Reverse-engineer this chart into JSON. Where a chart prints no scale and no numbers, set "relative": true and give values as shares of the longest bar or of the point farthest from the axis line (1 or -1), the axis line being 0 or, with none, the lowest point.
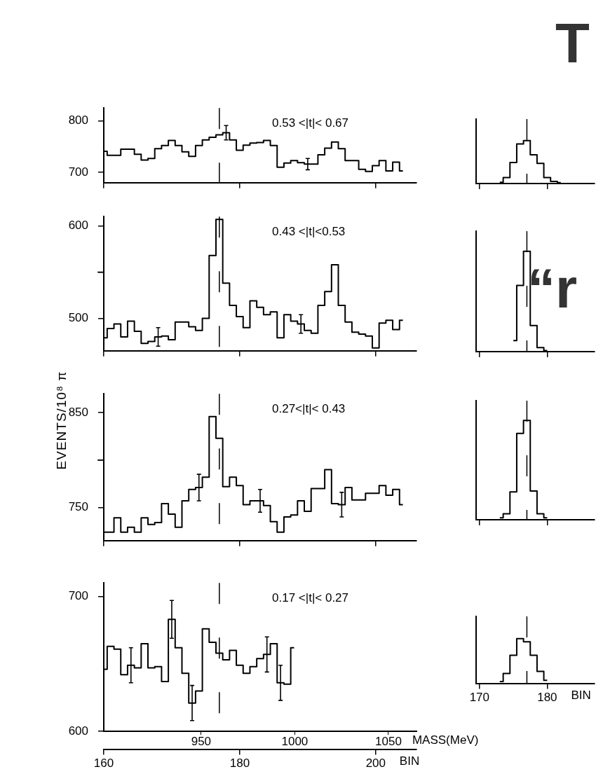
{
  "chart_data": [
    {
      "type": "step",
      "title": "0.53 <|t|< 0.67",
      "color": "#000000",
      "tick_labels": "y",
      "xlim": [
        160,
        206
      ],
      "xticks": [
        160,
        180,
        200
      ],
      "ylim": [
        680,
        825
      ],
      "yticks": [
        700,
        800
      ],
      "x": [
        160,
        161,
        162,
        163,
        164,
        165,
        166,
        167,
        168,
        169,
        170,
        171,
        172,
        173,
        174,
        175,
        176,
        177,
        178,
        179,
        180,
        181,
        182,
        183,
        184,
        185,
        186,
        187,
        188,
        189,
        190,
        191,
        192,
        193,
        194,
        195,
        196,
        197,
        198,
        199,
        200,
        201,
        202,
        203,
        204
      ],
      "values": [
        741,
        733,
        733,
        745,
        745,
        735,
        724,
        727,
        746,
        752,
        762,
        752,
        740,
        731,
        752,
        763,
        768,
        773,
        777,
        763,
        743,
        753,
        757,
        758,
        762,
        752,
        710,
        718,
        723,
        719,
        716,
        716,
        734,
        747,
        759,
        746,
        723,
        723,
        706,
        702,
        713,
        723,
        703,
        720,
        703
      ],
      "errors": [
        null,
        null,
        null,
        null,
        null,
        null,
        null,
        null,
        null,
        null,
        null,
        null,
        null,
        null,
        null,
        null,
        null,
        null,
        14,
        null,
        null,
        null,
        null,
        null,
        null,
        null,
        null,
        null,
        null,
        null,
        11,
        null,
        null,
        null,
        null,
        null,
        null,
        null,
        null,
        null,
        null,
        null,
        null,
        null,
        null
      ],
      "ref_lines": [
        {
          "axis": "x",
          "value": 177,
          "line_style": "dashed"
        }
      ]
    },
    {
      "type": "step",
      "relative": true,
      "color": "#000000",
      "tick_labels": false,
      "xlim": [
        169.5,
        187
      ],
      "xticks": [
        170,
        180
      ],
      "x": [
        173,
        174,
        175,
        176,
        177,
        178,
        179,
        180,
        181,
        182
      ],
      "values": [
        0.03,
        0.14,
        0.49,
        0.92,
        1,
        0.67,
        0.47,
        0.14,
        0.05,
        0.02
      ],
      "ref_lines": [
        {
          "axis": "x",
          "value": 177,
          "line_style": "dashed"
        }
      ]
    },
    {
      "type": "step",
      "title": "0.43 <|t|<0.53",
      "color": "#000000",
      "tick_labels": "y",
      "xlim": [
        160,
        206
      ],
      "xticks": [
        160,
        180,
        200
      ],
      "ylim": [
        465,
        610
      ],
      "yticks": [
        500,
        {
          "value": 550,
          "label": null
        },
        600
      ],
      "x": [
        160,
        161,
        162,
        163,
        164,
        165,
        166,
        167,
        168,
        169,
        170,
        171,
        172,
        173,
        174,
        175,
        176,
        177,
        178,
        179,
        180,
        181,
        182,
        183,
        184,
        185,
        186,
        187,
        188,
        189,
        190,
        191,
        192,
        193,
        194,
        195,
        196,
        197,
        198,
        199,
        200,
        201,
        202,
        203,
        204
      ],
      "values": [
        479,
        489,
        494,
        480,
        497,
        486,
        473,
        475,
        480,
        481,
        477,
        496,
        496,
        491,
        487,
        500,
        568,
        607,
        538,
        514,
        502,
        490,
        519,
        512,
        504,
        507,
        479,
        504,
        497,
        494,
        487,
        484,
        514,
        529,
        558,
        514,
        496,
        485,
        483,
        481,
        468,
        495,
        498,
        488,
        498
      ],
      "errors": [
        null,
        null,
        null,
        null,
        null,
        null,
        null,
        null,
        10,
        null,
        null,
        null,
        null,
        null,
        null,
        null,
        null,
        null,
        null,
        null,
        null,
        null,
        null,
        null,
        null,
        null,
        null,
        null,
        null,
        10,
        null,
        null,
        null,
        null,
        null,
        null,
        null,
        null,
        null,
        null,
        null,
        null,
        null,
        null,
        null
      ],
      "ref_lines": [
        {
          "axis": "x",
          "value": 177,
          "line_style": "dashed"
        }
      ]
    },
    {
      "type": "step",
      "relative": true,
      "color": "#000000",
      "tick_labels": false,
      "xlim": [
        169.5,
        187
      ],
      "xticks": [
        170,
        180
      ],
      "x": [
        175,
        176,
        177,
        178,
        179,
        180
      ],
      "values": [
        0.11,
        0.66,
        1,
        0.26,
        0.04,
        0.01
      ],
      "ref_lines": [
        {
          "axis": "x",
          "value": 177,
          "line_style": "dashed"
        }
      ]
    },
    {
      "type": "step",
      "title": "0.27<|t|< 0.43",
      "ylabel": "EVENTS/10⁸ π",
      "color": "#000000",
      "tick_labels": "y",
      "xlim": [
        160,
        206
      ],
      "xticks": [
        160,
        180,
        200
      ],
      "ylim": [
        715,
        870
      ],
      "yticks": [
        750,
        {
          "value": 800,
          "label": null
        },
        850
      ],
      "x": [
        160,
        161,
        162,
        163,
        164,
        165,
        166,
        167,
        168,
        169,
        170,
        171,
        172,
        173,
        174,
        175,
        176,
        177,
        178,
        179,
        180,
        181,
        182,
        183,
        184,
        185,
        186,
        187,
        188,
        189,
        190,
        191,
        192,
        193,
        194,
        195,
        196,
        197,
        198,
        199,
        200,
        201,
        202,
        203,
        204
      ],
      "values": [
        724,
        724,
        739,
        724,
        729,
        724,
        739,
        732,
        734,
        754,
        743,
        729,
        757,
        769,
        771,
        782,
        846,
        823,
        772,
        782,
        773,
        753,
        757,
        757,
        752,
        735,
        724,
        740,
        742,
        757,
        746,
        770,
        770,
        790,
        754,
        753,
        771,
        758,
        758,
        765,
        765,
        773,
        763,
        769,
        753
      ],
      "errors": [
        null,
        null,
        null,
        null,
        null,
        null,
        null,
        null,
        null,
        null,
        null,
        null,
        null,
        null,
        14,
        null,
        null,
        null,
        null,
        null,
        null,
        null,
        null,
        12,
        null,
        null,
        null,
        null,
        null,
        null,
        null,
        null,
        null,
        null,
        null,
        13,
        null,
        null,
        null,
        null,
        null,
        null,
        null,
        null,
        null
      ],
      "ref_lines": [
        {
          "axis": "x",
          "value": 177,
          "line_style": "dashed"
        }
      ]
    },
    {
      "type": "step",
      "relative": true,
      "color": "#000000",
      "tick_labels": false,
      "xlim": [
        169.5,
        187
      ],
      "xticks": [
        170,
        180
      ],
      "x": [
        173,
        174,
        175,
        176,
        177,
        178,
        179,
        180
      ],
      "values": [
        0.02,
        0.06,
        0.28,
        0.87,
        1,
        0.29,
        0.06,
        0.02
      ],
      "ref_lines": [
        {
          "axis": "x",
          "value": 177,
          "line_style": "dashed"
        }
      ]
    },
    {
      "type": "step",
      "title": "0.17 <|t|< 0.27",
      "xlabel": "BIN",
      "x2label": "MASS(MeV)",
      "color": "#000000",
      "xlim": [
        160,
        206
      ],
      "xticks": [
        160,
        180,
        200
      ],
      "x2lim": [
        898,
        1065
      ],
      "x2ticks": [
        950,
        1000,
        1050
      ],
      "ylim": [
        600,
        710
      ],
      "yticks": [
        600,
        700
      ],
      "x": [
        160,
        161,
        162,
        163,
        164,
        165,
        166,
        167,
        168,
        169,
        170,
        171,
        172,
        173,
        174,
        175,
        176,
        177,
        178,
        179,
        180,
        181,
        182,
        183,
        184,
        185,
        186,
        187,
        188
      ],
      "values": [
        646,
        663,
        661,
        642,
        649,
        647,
        665,
        647,
        648,
        637,
        683,
        662,
        643,
        621,
        630,
        676,
        666,
        658,
        653,
        660,
        649,
        643,
        648,
        654,
        657,
        665,
        636,
        635,
        662
      ],
      "errors": [
        null,
        null,
        null,
        null,
        13,
        null,
        null,
        null,
        null,
        null,
        14,
        null,
        null,
        13,
        null,
        null,
        null,
        null,
        null,
        null,
        null,
        null,
        null,
        null,
        13,
        null,
        13,
        null,
        null
      ],
      "ref_lines": [
        {
          "axis": "x",
          "value": 177,
          "line_style": "dashed"
        }
      ]
    },
    {
      "type": "step",
      "relative": true,
      "xlabel": "BIN",
      "color": "#000000",
      "xlim": [
        169.5,
        187
      ],
      "xticks": [
        170,
        180
      ],
      "x": [
        173,
        174,
        175,
        176,
        177,
        178,
        179,
        180
      ],
      "values": [
        0.04,
        0.22,
        0.63,
        1,
        0.93,
        0.63,
        0.27,
        0.07
      ],
      "ref_lines": [
        {
          "axis": "x",
          "value": 177,
          "line_style": "dashed"
        }
      ]
    },
    {
      "type": "other",
      "annotations": [
        "T",
        "“r"
      ]
    }
  ]
}
